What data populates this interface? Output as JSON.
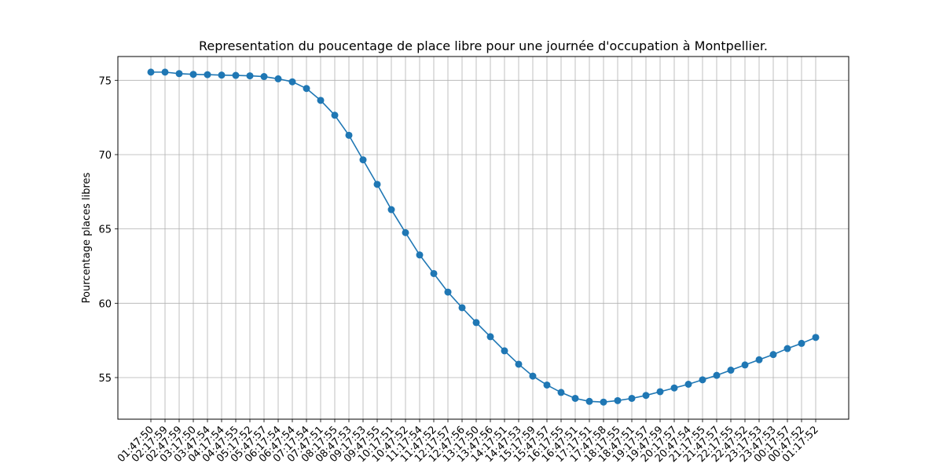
{
  "chart_data": {
    "type": "line",
    "title": "Representation du poucentage de place libre pour une journée d'occupation à Montpellier.",
    "xlabel": "",
    "ylabel": "Pourcentage places libres",
    "grid": true,
    "ylim": [
      52.2,
      76.6
    ],
    "yticks": [
      55,
      60,
      65,
      70,
      75
    ],
    "x": [
      "01:47:50",
      "02:17:59",
      "02:47:59",
      "03:17:50",
      "03:47:54",
      "04:17:54",
      "04:47:55",
      "05:17:52",
      "05:47:57",
      "06:17:54",
      "06:47:54",
      "07:17:54",
      "07:47:51",
      "08:17:55",
      "08:47:53",
      "09:17:53",
      "09:47:55",
      "10:17:51",
      "10:47:52",
      "11:17:54",
      "11:47:52",
      "12:17:57",
      "12:47:56",
      "13:17:50",
      "13:47:56",
      "14:17:51",
      "14:47:53",
      "15:17:59",
      "15:47:57",
      "16:17:55",
      "16:47:51",
      "17:17:51",
      "17:47:58",
      "18:17:55",
      "18:47:51",
      "19:17:57",
      "19:47:59",
      "20:17:57",
      "20:47:54",
      "21:17:55",
      "21:47:57",
      "22:17:55",
      "22:47:52",
      "23:17:53",
      "23:47:53",
      "00:17:57",
      "00:47:52",
      "01:17:52"
    ],
    "series": [
      {
        "name": "",
        "color": "#1f77b4",
        "values": [
          75.55,
          75.55,
          75.45,
          75.4,
          75.38,
          75.35,
          75.33,
          75.3,
          75.25,
          75.1,
          74.9,
          74.45,
          73.65,
          72.65,
          71.3,
          69.65,
          68.0,
          66.3,
          64.75,
          63.25,
          62.0,
          60.75,
          59.7,
          58.7,
          57.75,
          56.8,
          55.9,
          55.1,
          54.5,
          54.0,
          53.6,
          53.4,
          53.35,
          53.45,
          53.6,
          53.8,
          54.05,
          54.3,
          54.55,
          54.85,
          55.15,
          55.5,
          55.85,
          56.2,
          56.55,
          56.95,
          57.3,
          57.7
        ]
      }
    ]
  }
}
